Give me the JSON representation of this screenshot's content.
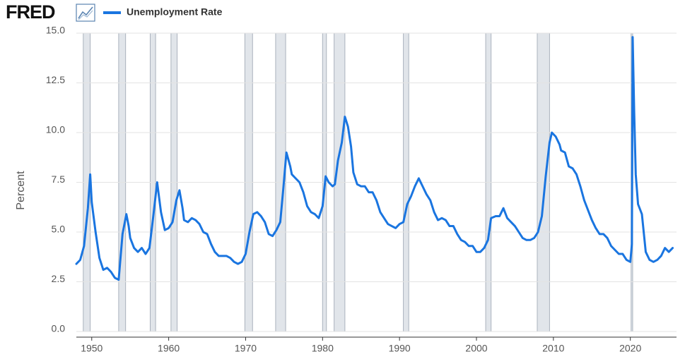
{
  "chart_data": {
    "type": "line",
    "logo": "FRED",
    "ylabel": "Percent",
    "xlim": [
      1948,
      2026
    ],
    "ylim": [
      0,
      15
    ],
    "xticks": [
      1950,
      1960,
      1970,
      1980,
      1990,
      2000,
      2010,
      2020
    ],
    "yticks": [
      {
        "value": 0,
        "label": "0.0"
      },
      {
        "value": 2.5,
        "label": "2.5"
      },
      {
        "value": 5,
        "label": "5.0"
      },
      {
        "value": 7.5,
        "label": "7.5"
      },
      {
        "value": 10,
        "label": "10.0"
      },
      {
        "value": 12.5,
        "label": "12.5"
      },
      {
        "value": 15,
        "label": "15.0"
      }
    ],
    "grid": true,
    "legend": "top-left",
    "recessions": [
      [
        1948.9,
        1949.8
      ],
      [
        1953.5,
        1954.4
      ],
      [
        1957.6,
        1958.3
      ],
      [
        1960.3,
        1961.1
      ],
      [
        1969.9,
        1970.9
      ],
      [
        1973.9,
        1975.2
      ],
      [
        1980.0,
        1980.5
      ],
      [
        1981.5,
        1982.9
      ],
      [
        1990.5,
        1991.2
      ],
      [
        2001.2,
        2001.9
      ],
      [
        2007.9,
        2009.5
      ],
      [
        2020.1,
        2020.3
      ]
    ],
    "recession_color": "#e1e5ea",
    "x": [
      1948.0,
      1948.5,
      1949.0,
      1949.5,
      1949.8,
      1950.0,
      1950.5,
      1951.0,
      1951.5,
      1952.0,
      1952.5,
      1953.0,
      1953.5,
      1954.0,
      1954.5,
      1954.8,
      1955.0,
      1955.5,
      1956.0,
      1956.5,
      1957.0,
      1957.5,
      1958.0,
      1958.5,
      1958.8,
      1959.0,
      1959.5,
      1960.0,
      1960.5,
      1961.0,
      1961.4,
      1961.8,
      1962.0,
      1962.5,
      1963.0,
      1963.5,
      1964.0,
      1964.5,
      1965.0,
      1965.5,
      1966.0,
      1966.5,
      1967.0,
      1967.5,
      1968.0,
      1968.5,
      1969.0,
      1969.5,
      1970.0,
      1970.5,
      1971.0,
      1971.5,
      1972.0,
      1972.5,
      1973.0,
      1973.5,
      1974.0,
      1974.5,
      1974.9,
      1975.3,
      1975.8,
      1976.0,
      1976.5,
      1977.0,
      1977.5,
      1978.0,
      1978.5,
      1979.0,
      1979.5,
      1980.0,
      1980.4,
      1980.8,
      1981.3,
      1981.6,
      1982.0,
      1982.5,
      1982.9,
      1983.3,
      1983.7,
      1984.0,
      1984.5,
      1985.0,
      1985.5,
      1986.0,
      1986.5,
      1987.0,
      1987.5,
      1988.0,
      1988.5,
      1989.0,
      1989.5,
      1990.0,
      1990.5,
      1991.0,
      1991.5,
      1992.0,
      1992.5,
      1993.0,
      1993.5,
      1994.0,
      1994.5,
      1995.0,
      1995.5,
      1996.0,
      1996.5,
      1997.0,
      1997.5,
      1998.0,
      1998.5,
      1999.0,
      1999.5,
      2000.0,
      2000.5,
      2001.0,
      2001.5,
      2001.9,
      2002.5,
      2003.0,
      2003.5,
      2004.0,
      2004.5,
      2005.0,
      2005.5,
      2006.0,
      2006.5,
      2007.0,
      2007.5,
      2008.0,
      2008.5,
      2009.0,
      2009.5,
      2009.8,
      2010.3,
      2010.8,
      2011.0,
      2011.5,
      2012.0,
      2012.5,
      2013.0,
      2013.5,
      2014.0,
      2014.5,
      2015.0,
      2015.5,
      2016.0,
      2016.5,
      2017.0,
      2017.5,
      2018.0,
      2018.5,
      2019.0,
      2019.5,
      2020.0,
      2020.2,
      2020.3,
      2020.5,
      2020.7,
      2021.0,
      2021.5,
      2022.0,
      2022.5,
      2023.0,
      2023.5,
      2024.0,
      2024.5,
      2025.0,
      2025.5
    ],
    "series": [
      {
        "name": "Unemployment Rate",
        "color": "#1a75e0",
        "values": [
          3.4,
          3.6,
          4.3,
          6.2,
          7.9,
          6.5,
          5.0,
          3.7,
          3.1,
          3.2,
          3.0,
          2.7,
          2.6,
          4.9,
          5.9,
          5.3,
          4.7,
          4.2,
          4.0,
          4.2,
          3.9,
          4.2,
          5.8,
          7.5,
          6.6,
          6.0,
          5.1,
          5.2,
          5.5,
          6.6,
          7.1,
          6.2,
          5.6,
          5.5,
          5.7,
          5.6,
          5.4,
          5.0,
          4.9,
          4.4,
          4.0,
          3.8,
          3.8,
          3.8,
          3.7,
          3.5,
          3.4,
          3.5,
          3.9,
          5.0,
          5.9,
          6.0,
          5.8,
          5.5,
          4.9,
          4.8,
          5.1,
          5.5,
          7.2,
          9.0,
          8.3,
          7.9,
          7.7,
          7.5,
          7.0,
          6.3,
          6.0,
          5.9,
          5.7,
          6.3,
          7.8,
          7.5,
          7.3,
          7.4,
          8.6,
          9.5,
          10.8,
          10.3,
          9.3,
          8.0,
          7.4,
          7.3,
          7.3,
          7.0,
          7.0,
          6.6,
          6.0,
          5.7,
          5.4,
          5.3,
          5.2,
          5.4,
          5.5,
          6.4,
          6.8,
          7.3,
          7.7,
          7.3,
          6.9,
          6.6,
          6.0,
          5.6,
          5.7,
          5.6,
          5.3,
          5.3,
          4.9,
          4.6,
          4.5,
          4.3,
          4.3,
          4.0,
          4.0,
          4.2,
          4.6,
          5.7,
          5.8,
          5.8,
          6.2,
          5.7,
          5.5,
          5.3,
          5.0,
          4.7,
          4.6,
          4.6,
          4.7,
          5.0,
          5.8,
          7.8,
          9.5,
          10.0,
          9.8,
          9.4,
          9.1,
          9.0,
          8.3,
          8.2,
          7.9,
          7.3,
          6.6,
          6.1,
          5.6,
          5.2,
          4.9,
          4.9,
          4.7,
          4.3,
          4.1,
          3.9,
          3.9,
          3.6,
          3.5,
          4.4,
          14.8,
          11.0,
          7.9,
          6.4,
          5.9,
          4.0,
          3.6,
          3.5,
          3.6,
          3.8,
          4.2,
          4.0,
          4.2
        ]
      }
    ]
  }
}
